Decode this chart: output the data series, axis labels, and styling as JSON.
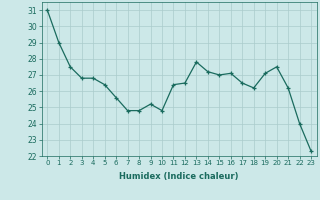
{
  "xlabel": "Humidex (Indice chaleur)",
  "x": [
    0,
    1,
    2,
    3,
    4,
    5,
    6,
    7,
    8,
    9,
    10,
    11,
    12,
    13,
    14,
    15,
    16,
    17,
    18,
    19,
    20,
    21,
    22,
    23
  ],
  "y": [
    31,
    29,
    27.5,
    26.8,
    26.8,
    26.4,
    25.6,
    24.8,
    24.8,
    25.2,
    24.8,
    26.4,
    26.5,
    27.8,
    27.2,
    27.0,
    27.1,
    26.5,
    26.2,
    27.1,
    27.5,
    26.2,
    24.0,
    22.3
  ],
  "ylim": [
    22,
    31.5
  ],
  "yticks": [
    22,
    23,
    24,
    25,
    26,
    27,
    28,
    29,
    30,
    31
  ],
  "xticks": [
    0,
    1,
    2,
    3,
    4,
    5,
    6,
    7,
    8,
    9,
    10,
    11,
    12,
    13,
    14,
    15,
    16,
    17,
    18,
    19,
    20,
    21,
    22,
    23
  ],
  "line_color": "#1a6b5e",
  "marker": "+",
  "bg_color": "#cce8e8",
  "grid_color": "#aacccc",
  "fig_bg": "#cce8e8"
}
